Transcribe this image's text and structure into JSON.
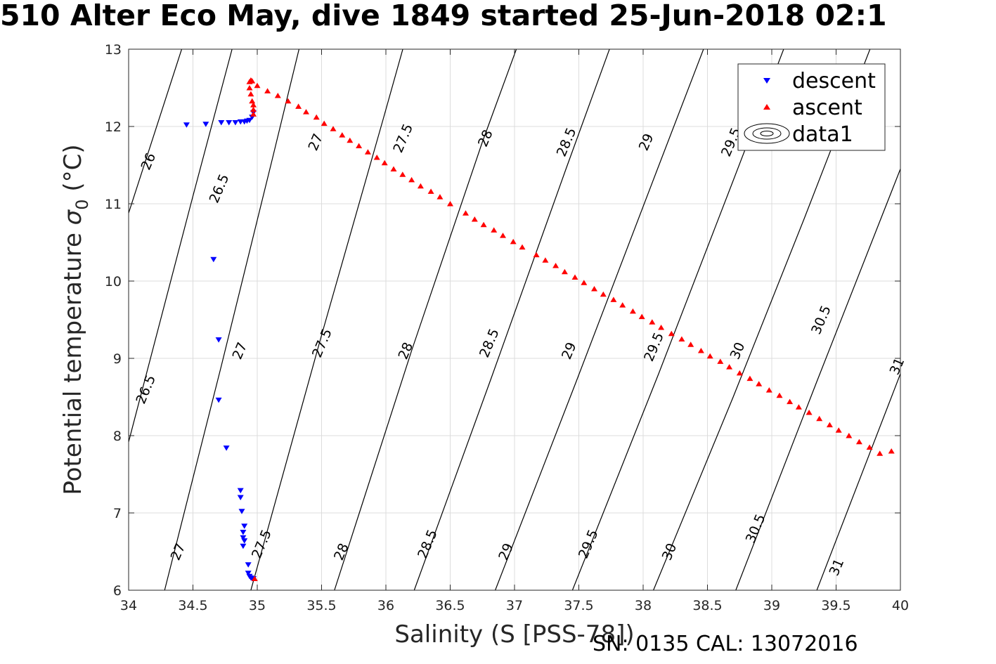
{
  "title": "510 Alter Eco May, dive 1849 started 25-Jun-2018 02:1",
  "footer": "SN: 0135  CAL: 13072016",
  "chart_data": {
    "type": "scatter",
    "xlabel": "Salinity (S [PSS-78])",
    "ylabel": "Potential temperature",
    "ylabel_symbol": "σ",
    "ylabel_subscript": "0",
    "ylabel_unit": "(°C)",
    "xlim": [
      34,
      40
    ],
    "ylim": [
      6,
      13
    ],
    "xticks": [
      34,
      34.5,
      35,
      35.5,
      36,
      36.5,
      37,
      37.5,
      38,
      38.5,
      39,
      39.5,
      40
    ],
    "xtick_labels": [
      "34",
      "34.5",
      "35",
      "35.5",
      "36",
      "36.5",
      "37",
      "37.5",
      "38",
      "38.5",
      "39",
      "39.5",
      "40"
    ],
    "yticks": [
      6,
      7,
      8,
      9,
      10,
      11,
      12,
      13
    ],
    "ytick_labels": [
      "6",
      "7",
      "8",
      "9",
      "10",
      "11",
      "12",
      "13"
    ],
    "grid": true,
    "legend_position": "top-right",
    "colors": {
      "descent": "#0000ff",
      "ascent": "#ff0000",
      "contour": "#000000",
      "grid": "#dcdcdc"
    },
    "legend": [
      {
        "label": "descent",
        "marker": "triangle-down",
        "color": "#0000ff"
      },
      {
        "label": "ascent",
        "marker": "triangle-up",
        "color": "#ff0000"
      },
      {
        "label": "data1",
        "marker": "contour",
        "color": "#000000"
      }
    ],
    "contours": [
      {
        "level": "26",
        "points": [
          [
            34.0,
            10.88
          ],
          [
            34.5,
            13.45
          ]
        ]
      },
      {
        "level": "26.5",
        "points": [
          [
            34.0,
            7.92
          ],
          [
            34.5,
            11.1
          ],
          [
            34.9,
            13.6
          ]
        ]
      },
      {
        "level": "27",
        "points": [
          [
            34.28,
            6.0
          ],
          [
            34.72,
            8.9
          ],
          [
            35.12,
            11.6
          ],
          [
            35.5,
            14.2
          ]
        ]
      },
      {
        "level": "27.5",
        "points": [
          [
            34.95,
            6.0
          ],
          [
            35.5,
            9.3
          ],
          [
            35.98,
            12.1
          ],
          [
            36.3,
            14.0
          ]
        ]
      },
      {
        "level": "28",
        "points": [
          [
            35.6,
            6.0
          ],
          [
            36.2,
            9.1
          ],
          [
            36.75,
            11.8
          ],
          [
            37.3,
            14.3
          ]
        ]
      },
      {
        "level": "28.5",
        "points": [
          [
            36.22,
            6.0
          ],
          [
            36.82,
            8.75
          ],
          [
            37.4,
            11.45
          ],
          [
            38.0,
            14.2
          ]
        ]
      },
      {
        "level": "29",
        "points": [
          [
            36.85,
            6.0
          ],
          [
            37.48,
            8.7
          ],
          [
            38.1,
            11.4
          ],
          [
            38.7,
            14.0
          ]
        ]
      },
      {
        "level": "29.5",
        "points": [
          [
            37.45,
            6.0
          ],
          [
            38.12,
            8.8
          ],
          [
            38.7,
            11.3
          ],
          [
            39.3,
            13.9
          ]
        ]
      },
      {
        "level": "30",
        "points": [
          [
            38.08,
            6.0
          ],
          [
            38.7,
            8.5
          ],
          [
            39.25,
            10.8
          ],
          [
            39.95,
            13.8
          ]
        ]
      },
      {
        "level": "30.5",
        "points": [
          [
            38.72,
            6.0
          ],
          [
            39.35,
            8.7
          ],
          [
            40.0,
            11.45
          ]
        ]
      },
      {
        "level": "31",
        "points": [
          [
            39.35,
            6.0
          ],
          [
            40.0,
            8.8
          ]
        ]
      }
    ],
    "contour_labels": [
      {
        "text": "26",
        "at": [
          34.15,
          11.55
        ]
      },
      {
        "text": "26.5",
        "at": [
          34.7,
          11.2
        ]
      },
      {
        "text": "27",
        "at": [
          35.45,
          11.8
        ]
      },
      {
        "text": "27.5",
        "at": [
          36.13,
          11.85
        ]
      },
      {
        "text": "28",
        "at": [
          36.77,
          11.85
        ]
      },
      {
        "text": "28.5",
        "at": [
          37.4,
          11.8
        ]
      },
      {
        "text": "29",
        "at": [
          38.02,
          11.8
        ]
      },
      {
        "text": "29.5",
        "at": [
          38.68,
          11.8
        ]
      },
      {
        "text": "30",
        "at": [
          39.29,
          11.8
        ]
      },
      {
        "text": "26.5",
        "at": [
          34.13,
          8.6
        ]
      },
      {
        "text": "27",
        "at": [
          34.86,
          9.1
        ]
      },
      {
        "text": "27.5",
        "at": [
          35.5,
          9.2
        ]
      },
      {
        "text": "28",
        "at": [
          36.15,
          9.1
        ]
      },
      {
        "text": "28.5",
        "at": [
          36.8,
          9.2
        ]
      },
      {
        "text": "29",
        "at": [
          37.42,
          9.1
        ]
      },
      {
        "text": "29.5",
        "at": [
          38.08,
          9.15
        ]
      },
      {
        "text": "30",
        "at": [
          38.73,
          9.1
        ]
      },
      {
        "text": "30.5",
        "at": [
          39.38,
          9.5
        ]
      },
      {
        "text": "31",
        "at": [
          39.97,
          8.9
        ]
      },
      {
        "text": "27",
        "at": [
          34.38,
          6.5
        ]
      },
      {
        "text": "27.5",
        "at": [
          35.03,
          6.6
        ]
      },
      {
        "text": "28",
        "at": [
          35.65,
          6.5
        ]
      },
      {
        "text": "28.5",
        "at": [
          36.32,
          6.6
        ]
      },
      {
        "text": "29",
        "at": [
          36.93,
          6.5
        ]
      },
      {
        "text": "29.5",
        "at": [
          37.57,
          6.6
        ]
      },
      {
        "text": "30",
        "at": [
          38.2,
          6.5
        ]
      },
      {
        "text": "30.5",
        "at": [
          38.87,
          6.8
        ]
      },
      {
        "text": "31",
        "at": [
          39.5,
          6.3
        ]
      }
    ],
    "series": [
      {
        "name": "descent",
        "marker": "triangle-down",
        "color": "#0000ff",
        "points": [
          [
            34.45,
            12.02
          ],
          [
            34.6,
            12.03
          ],
          [
            34.72,
            12.05
          ],
          [
            34.78,
            12.05
          ],
          [
            34.83,
            12.05
          ],
          [
            34.87,
            12.06
          ],
          [
            34.9,
            12.06
          ],
          [
            34.92,
            12.07
          ],
          [
            34.94,
            12.08
          ],
          [
            34.96,
            12.12
          ],
          [
            34.97,
            12.18
          ],
          [
            34.66,
            10.28
          ],
          [
            34.7,
            9.24
          ],
          [
            34.7,
            8.46
          ],
          [
            34.76,
            7.84
          ],
          [
            34.87,
            7.29
          ],
          [
            34.87,
            7.2
          ],
          [
            34.88,
            7.02
          ],
          [
            34.9,
            6.83
          ],
          [
            34.89,
            6.75
          ],
          [
            34.89,
            6.68
          ],
          [
            34.9,
            6.64
          ],
          [
            34.89,
            6.57
          ],
          [
            34.93,
            6.33
          ],
          [
            34.93,
            6.22
          ],
          [
            34.94,
            6.18
          ],
          [
            34.95,
            6.16
          ],
          [
            34.96,
            6.15
          ],
          [
            34.97,
            6.15
          ]
        ]
      },
      {
        "name": "ascent",
        "marker": "triangle-up",
        "color": "#ff0000",
        "points": [
          [
            34.98,
            6.15
          ],
          [
            34.97,
            12.16
          ],
          [
            34.97,
            12.22
          ],
          [
            34.97,
            12.28
          ],
          [
            34.96,
            12.33
          ],
          [
            34.95,
            12.42
          ],
          [
            34.94,
            12.5
          ],
          [
            34.94,
            12.58
          ],
          [
            34.95,
            12.6
          ],
          [
            34.96,
            12.59
          ],
          [
            35.0,
            12.53
          ],
          [
            35.08,
            12.46
          ],
          [
            35.16,
            12.4
          ],
          [
            35.24,
            12.33
          ],
          [
            35.32,
            12.26
          ],
          [
            35.38,
            12.19
          ],
          [
            35.46,
            12.12
          ],
          [
            35.52,
            12.04
          ],
          [
            35.59,
            11.97
          ],
          [
            35.66,
            11.89
          ],
          [
            35.72,
            11.82
          ],
          [
            35.79,
            11.75
          ],
          [
            35.86,
            11.67
          ],
          [
            35.93,
            11.6
          ],
          [
            35.99,
            11.53
          ],
          [
            36.06,
            11.45
          ],
          [
            36.13,
            11.38
          ],
          [
            36.2,
            11.31
          ],
          [
            36.27,
            11.23
          ],
          [
            36.35,
            11.16
          ],
          [
            36.42,
            11.09
          ],
          [
            36.5,
            11.0
          ],
          [
            36.62,
            10.88
          ],
          [
            36.69,
            10.8
          ],
          [
            36.76,
            10.73
          ],
          [
            36.84,
            10.66
          ],
          [
            36.91,
            10.59
          ],
          [
            36.99,
            10.51
          ],
          [
            37.06,
            10.44
          ],
          [
            37.17,
            10.34
          ],
          [
            37.24,
            10.27
          ],
          [
            37.32,
            10.2
          ],
          [
            37.39,
            10.12
          ],
          [
            37.47,
            10.05
          ],
          [
            37.54,
            9.98
          ],
          [
            37.62,
            9.9
          ],
          [
            37.69,
            9.83
          ],
          [
            37.77,
            9.76
          ],
          [
            37.84,
            9.69
          ],
          [
            37.92,
            9.61
          ],
          [
            37.99,
            9.54
          ],
          [
            38.07,
            9.47
          ],
          [
            38.14,
            9.4
          ],
          [
            38.22,
            9.32
          ],
          [
            38.3,
            9.25
          ],
          [
            38.37,
            9.18
          ],
          [
            38.45,
            9.1
          ],
          [
            38.52,
            9.03
          ],
          [
            38.6,
            8.96
          ],
          [
            38.67,
            8.89
          ],
          [
            38.75,
            8.81
          ],
          [
            38.83,
            8.74
          ],
          [
            38.9,
            8.67
          ],
          [
            38.98,
            8.59
          ],
          [
            39.06,
            8.52
          ],
          [
            39.14,
            8.44
          ],
          [
            39.21,
            8.37
          ],
          [
            39.29,
            8.3
          ],
          [
            39.37,
            8.22
          ],
          [
            39.45,
            8.14
          ],
          [
            39.52,
            8.07
          ],
          [
            39.6,
            8.0
          ],
          [
            39.68,
            7.92
          ],
          [
            39.76,
            7.85
          ],
          [
            39.84,
            7.77
          ],
          [
            39.93,
            7.8
          ]
        ]
      }
    ]
  }
}
